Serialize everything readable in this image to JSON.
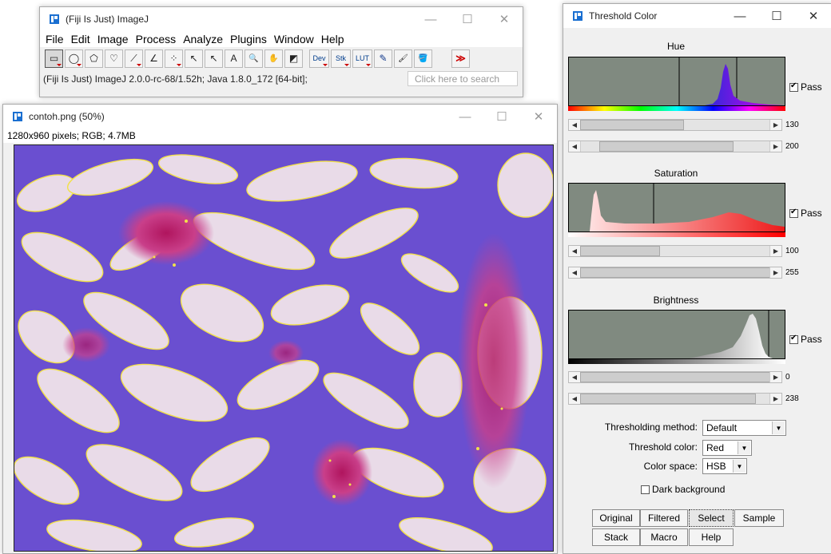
{
  "imagej": {
    "title": "(Fiji Is Just) ImageJ",
    "menus": [
      "File",
      "Edit",
      "Image",
      "Process",
      "Analyze",
      "Plugins",
      "Window",
      "Help"
    ],
    "tools": [
      {
        "name": "rectangle-tool",
        "glyph": "▭"
      },
      {
        "name": "oval-tool",
        "glyph": "◯"
      },
      {
        "name": "polygon-tool",
        "glyph": "⬠"
      },
      {
        "name": "freehand-tool",
        "glyph": "♡"
      },
      {
        "name": "line-tool",
        "glyph": "⟋"
      },
      {
        "name": "angle-tool",
        "glyph": "∠"
      },
      {
        "name": "multipoint-tool",
        "glyph": "⁘"
      },
      {
        "name": "wand-tool",
        "glyph": "↖"
      },
      {
        "name": "pointer-tool",
        "glyph": "↖"
      },
      {
        "name": "text-tool",
        "glyph": "A"
      },
      {
        "name": "magnifier-tool",
        "glyph": "🔍"
      },
      {
        "name": "hand-tool",
        "glyph": "✋"
      },
      {
        "name": "color-picker-tool",
        "glyph": "◩"
      }
    ],
    "tool_menus": [
      {
        "name": "dev-menu",
        "label": "Dev"
      },
      {
        "name": "stk-menu",
        "label": "Stk"
      },
      {
        "name": "lut-menu",
        "label": "LUT"
      }
    ],
    "extra_tools": [
      {
        "name": "pencil-tool",
        "glyph": "✎"
      },
      {
        "name": "brush-tool",
        "glyph": "🖌"
      },
      {
        "name": "flood-fill-tool",
        "glyph": "🪣"
      }
    ],
    "more_label": "≫",
    "status": "(Fiji Is Just) ImageJ 2.0.0-rc-68/1.52h; Java 1.8.0_172 [64-bit];",
    "search_placeholder": "Click here to search"
  },
  "image_window": {
    "title": "contoh.png (50%)",
    "info": "1280x960 pixels; RGB; 4.7MB"
  },
  "threshold": {
    "title": "Threshold Color",
    "hue": {
      "label": "Hue",
      "pass": "Pass",
      "min": "130",
      "max": "200"
    },
    "saturation": {
      "label": "Saturation",
      "pass": "Pass",
      "min": "100",
      "max": "255"
    },
    "brightness": {
      "label": "Brightness",
      "pass": "Pass",
      "min": "0",
      "max": "238"
    },
    "method_label": "Thresholding method:",
    "method_value": "Default",
    "color_label": "Threshold color:",
    "color_value": "Red",
    "space_label": "Color space:",
    "space_value": "HSB",
    "dark_bg_label": "Dark background",
    "buttons_row1": [
      "Original",
      "Filtered",
      "Select",
      "Sample"
    ],
    "buttons_row2": [
      "Stack",
      "Macro",
      "Help"
    ]
  }
}
